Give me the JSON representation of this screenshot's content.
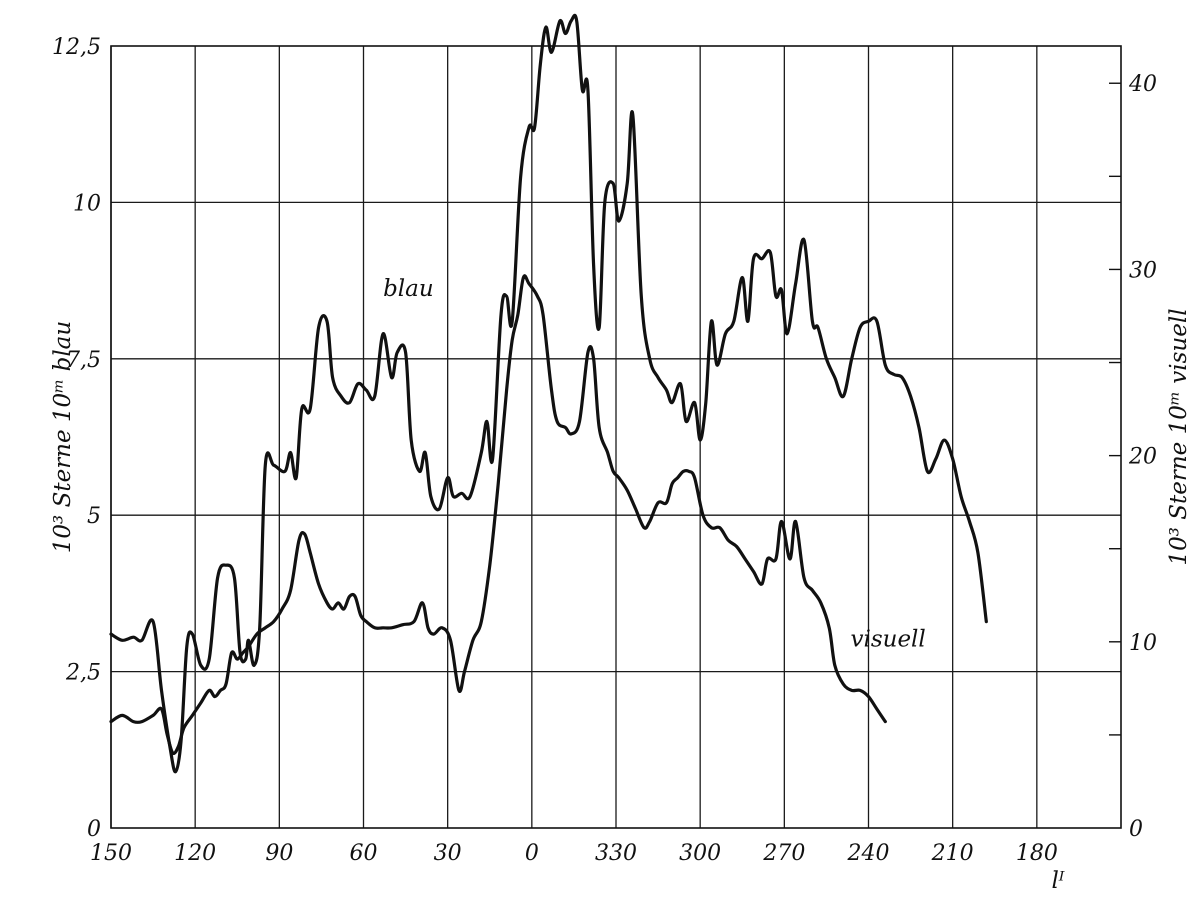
{
  "chart_data": {
    "type": "line",
    "title": "",
    "xlabel": "lᴵ",
    "ylabel_left": "10³ Sterne 10ᵐ blau",
    "ylabel_right": "10³ Sterne 10ᵐ visuell",
    "x_tick_labels": [
      "120",
      "90",
      "60",
      "30",
      "0",
      "330",
      "300",
      "270",
      "240",
      "210",
      "180",
      "150"
    ],
    "x_direction": "galactic longitude decreasing from 150 (left) through 0 to 150 (right)",
    "left_axis": {
      "ylim": [
        0,
        12.5
      ],
      "tick_labels": [
        "0",
        "2,5",
        "5",
        "7,5",
        "10",
        "12,5"
      ]
    },
    "right_axis": {
      "ylim": [
        0,
        42
      ],
      "tick_labels": [
        "0",
        "10",
        "20",
        "30",
        "40"
      ]
    },
    "grid": true,
    "series": [
      {
        "name": "blau",
        "axis": "left",
        "points": [
          [
            150,
            3.1
          ],
          [
            146,
            3.0
          ],
          [
            142,
            3.05
          ],
          [
            139,
            3.0
          ],
          [
            135,
            3.3
          ],
          [
            132,
            2.2
          ],
          [
            129,
            1.3
          ],
          [
            127,
            0.9
          ],
          [
            125,
            1.4
          ],
          [
            123,
            2.9
          ],
          [
            121,
            3.1
          ],
          [
            118,
            2.6
          ],
          [
            115,
            2.7
          ],
          [
            112,
            4.0
          ],
          [
            109,
            4.2
          ],
          [
            106,
            4.0
          ],
          [
            104,
            2.8
          ],
          [
            102,
            2.7
          ],
          [
            101,
            3.0
          ],
          [
            99,
            2.6
          ],
          [
            97,
            3.2
          ],
          [
            95,
            5.8
          ],
          [
            92,
            5.8
          ],
          [
            88,
            5.7
          ],
          [
            86,
            6.0
          ],
          [
            84,
            5.6
          ],
          [
            82,
            6.7
          ],
          [
            79,
            6.7
          ],
          [
            76,
            8.0
          ],
          [
            73,
            8.1
          ],
          [
            71,
            7.2
          ],
          [
            68,
            6.9
          ],
          [
            65,
            6.8
          ],
          [
            62,
            7.1
          ],
          [
            59,
            7.0
          ],
          [
            56,
            6.9
          ],
          [
            53,
            7.9
          ],
          [
            50,
            7.2
          ],
          [
            48,
            7.6
          ],
          [
            45,
            7.6
          ],
          [
            43,
            6.2
          ],
          [
            40,
            5.7
          ],
          [
            38,
            6.0
          ],
          [
            36,
            5.3
          ],
          [
            33,
            5.1
          ],
          [
            30,
            5.6
          ],
          [
            28,
            5.3
          ],
          [
            25,
            5.35
          ],
          [
            22,
            5.3
          ],
          [
            18,
            6.0
          ],
          [
            16,
            6.5
          ],
          [
            14,
            5.9
          ],
          [
            11,
            8.2
          ],
          [
            9,
            8.5
          ],
          [
            7,
            8.1
          ],
          [
            4,
            10.4
          ],
          [
            1,
            11.2
          ],
          [
            359,
            11.2
          ],
          [
            357,
            12.2
          ],
          [
            355,
            12.8
          ],
          [
            353,
            12.4
          ],
          [
            350,
            12.9
          ],
          [
            348,
            12.7
          ],
          [
            346,
            12.9
          ],
          [
            344,
            12.9
          ],
          [
            342,
            11.8
          ],
          [
            340,
            11.8
          ],
          [
            338,
            9.0
          ],
          [
            336,
            8.0
          ],
          [
            334,
            10.0
          ],
          [
            331,
            10.3
          ],
          [
            329,
            9.7
          ],
          [
            326,
            10.3
          ],
          [
            324,
            11.4
          ],
          [
            321,
            8.5
          ],
          [
            318,
            7.5
          ],
          [
            315,
            7.2
          ],
          [
            312,
            7.0
          ],
          [
            310,
            6.8
          ],
          [
            307,
            7.1
          ],
          [
            305,
            6.5
          ],
          [
            302,
            6.8
          ],
          [
            300,
            6.2
          ],
          [
            298,
            6.8
          ],
          [
            296,
            8.1
          ],
          [
            294,
            7.4
          ],
          [
            291,
            7.9
          ],
          [
            288,
            8.1
          ],
          [
            285,
            8.8
          ],
          [
            283,
            8.1
          ],
          [
            281,
            9.1
          ],
          [
            278,
            9.1
          ],
          [
            275,
            9.2
          ],
          [
            273,
            8.5
          ],
          [
            271,
            8.6
          ],
          [
            269,
            7.9
          ],
          [
            266,
            8.7
          ],
          [
            263,
            9.4
          ],
          [
            260,
            8.1
          ],
          [
            258,
            8.0
          ],
          [
            255,
            7.5
          ],
          [
            252,
            7.2
          ],
          [
            249,
            6.9
          ],
          [
            246,
            7.5
          ],
          [
            243,
            8.0
          ],
          [
            240,
            8.1
          ],
          [
            237,
            8.1
          ],
          [
            234,
            7.4
          ],
          [
            231,
            7.25
          ],
          [
            228,
            7.2
          ],
          [
            225,
            6.9
          ],
          [
            222,
            6.4
          ],
          [
            219,
            5.7
          ],
          [
            216,
            5.9
          ],
          [
            213,
            6.2
          ],
          [
            210,
            5.9
          ],
          [
            207,
            5.3
          ],
          [
            204,
            4.9
          ],
          [
            201,
            4.4
          ],
          [
            198,
            3.3
          ]
        ]
      },
      {
        "name": "visuell",
        "axis": "left",
        "points": [
          [
            150,
            1.7
          ],
          [
            146,
            1.8
          ],
          [
            142,
            1.7
          ],
          [
            139,
            1.7
          ],
          [
            135,
            1.8
          ],
          [
            132,
            1.9
          ],
          [
            130,
            1.5
          ],
          [
            128,
            1.2
          ],
          [
            126,
            1.3
          ],
          [
            124,
            1.6
          ],
          [
            121,
            1.8
          ],
          [
            118,
            2.0
          ],
          [
            115,
            2.2
          ],
          [
            113,
            2.1
          ],
          [
            111,
            2.2
          ],
          [
            109,
            2.3
          ],
          [
            107,
            2.8
          ],
          [
            105,
            2.7
          ],
          [
            103,
            2.8
          ],
          [
            101,
            2.9
          ],
          [
            98,
            3.1
          ],
          [
            95,
            3.2
          ],
          [
            92,
            3.3
          ],
          [
            89,
            3.5
          ],
          [
            86,
            3.8
          ],
          [
            83,
            4.6
          ],
          [
            81,
            4.7
          ],
          [
            79,
            4.4
          ],
          [
            76,
            3.9
          ],
          [
            73,
            3.6
          ],
          [
            71,
            3.5
          ],
          [
            69,
            3.6
          ],
          [
            67,
            3.5
          ],
          [
            65,
            3.7
          ],
          [
            63,
            3.7
          ],
          [
            61,
            3.4
          ],
          [
            59,
            3.3
          ],
          [
            56,
            3.2
          ],
          [
            53,
            3.2
          ],
          [
            50,
            3.2
          ],
          [
            46,
            3.25
          ],
          [
            42,
            3.3
          ],
          [
            39,
            3.6
          ],
          [
            37,
            3.2
          ],
          [
            35,
            3.1
          ],
          [
            32,
            3.2
          ],
          [
            29,
            3.0
          ],
          [
            26,
            2.2
          ],
          [
            24,
            2.5
          ],
          [
            21,
            3.0
          ],
          [
            18,
            3.3
          ],
          [
            15,
            4.2
          ],
          [
            12,
            5.5
          ],
          [
            9,
            7.0
          ],
          [
            7,
            7.8
          ],
          [
            5,
            8.2
          ],
          [
            3,
            8.8
          ],
          [
            1,
            8.7
          ],
          [
            358,
            8.5
          ],
          [
            356,
            8.2
          ],
          [
            353,
            7.0
          ],
          [
            351,
            6.5
          ],
          [
            348,
            6.4
          ],
          [
            346,
            6.3
          ],
          [
            343,
            6.5
          ],
          [
            340,
            7.6
          ],
          [
            338,
            7.5
          ],
          [
            336,
            6.4
          ],
          [
            333,
            6.0
          ],
          [
            331,
            5.7
          ],
          [
            329,
            5.6
          ],
          [
            326,
            5.4
          ],
          [
            323,
            5.1
          ],
          [
            320,
            4.8
          ],
          [
            318,
            4.9
          ],
          [
            315,
            5.2
          ],
          [
            312,
            5.2
          ],
          [
            310,
            5.5
          ],
          [
            308,
            5.6
          ],
          [
            306,
            5.7
          ],
          [
            304,
            5.7
          ],
          [
            302,
            5.6
          ],
          [
            299,
            5.0
          ],
          [
            296,
            4.8
          ],
          [
            293,
            4.8
          ],
          [
            290,
            4.6
          ],
          [
            287,
            4.5
          ],
          [
            284,
            4.3
          ],
          [
            281,
            4.1
          ],
          [
            278,
            3.9
          ],
          [
            276,
            4.3
          ],
          [
            273,
            4.3
          ],
          [
            271,
            4.9
          ],
          [
            268,
            4.3
          ],
          [
            266,
            4.9
          ],
          [
            263,
            4.0
          ],
          [
            260,
            3.8
          ],
          [
            257,
            3.6
          ],
          [
            254,
            3.2
          ],
          [
            252,
            2.6
          ],
          [
            249,
            2.3
          ],
          [
            246,
            2.2
          ],
          [
            243,
            2.2
          ],
          [
            240,
            2.1
          ],
          [
            237,
            1.9
          ],
          [
            234,
            1.7
          ]
        ]
      }
    ],
    "series_labels": [
      {
        "name": "blau",
        "at_x": 44,
        "at_y": 8.5
      },
      {
        "name": "visuell",
        "at_x": 233,
        "at_y": 2.9
      }
    ]
  }
}
